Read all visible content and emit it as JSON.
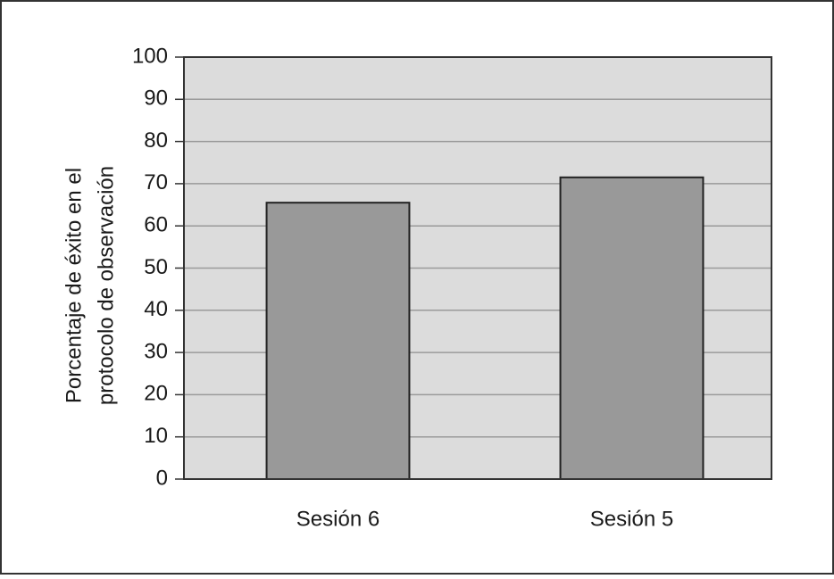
{
  "chart_data": {
    "type": "bar",
    "y_label": [
      "Porcentaje de éxito en el",
      "protocolo de observación"
    ],
    "categories": [
      "Sesión 6",
      "Sesión 5"
    ],
    "values": [
      65.5,
      71.5
    ],
    "color": "#999999",
    "ylim": [
      0,
      100
    ],
    "yticks": [
      0,
      10,
      20,
      30,
      40,
      50,
      60,
      70,
      80,
      90,
      100
    ],
    "grid": true
  }
}
